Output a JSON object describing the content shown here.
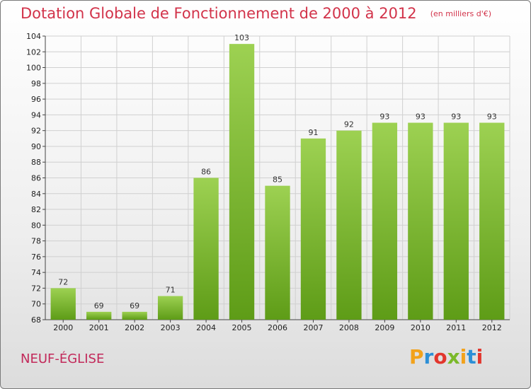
{
  "header": {
    "title": "Dotation Globale de Fonctionnement de 2000 à 2012",
    "unit": "(en milliers d'€)"
  },
  "footer": {
    "commune": "NEUF-ÉGLISE",
    "logo_text": "Proxiti"
  },
  "colors": {
    "title": "#d2334a",
    "bar_top": "#9dd152",
    "bar_bottom": "#5e9c17",
    "grid": "#d0d0d0"
  },
  "chart_data": {
    "type": "bar",
    "title": "Dotation Globale de Fonctionnement de 2000 à 2012",
    "subtitle": "(en milliers d'€)",
    "categories": [
      "2000",
      "2001",
      "2002",
      "2003",
      "2004",
      "2005",
      "2006",
      "2007",
      "2008",
      "2009",
      "2010",
      "2011",
      "2012"
    ],
    "values": [
      72,
      69,
      69,
      71,
      86,
      103,
      85,
      91,
      92,
      93,
      93,
      93,
      93
    ],
    "ylim": [
      68,
      104
    ],
    "ytick_step": 2,
    "grid": true,
    "xlabel": "",
    "ylabel": ""
  }
}
